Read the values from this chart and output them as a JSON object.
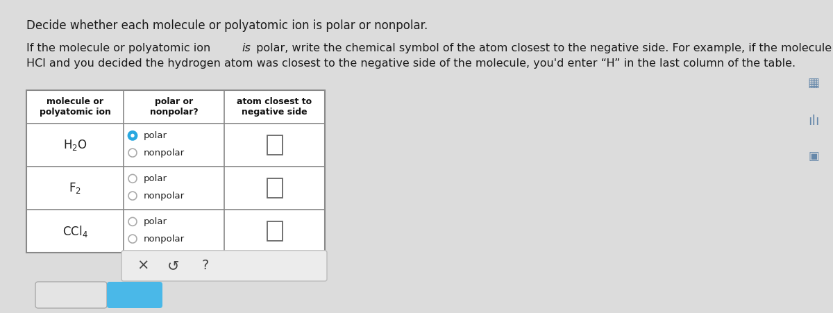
{
  "bg_color": "#dcdcdc",
  "title_line1": "Decide whether each molecule or polyatomic ion is polar or nonpolar.",
  "title_line2a": "If the molecule or polyatomic ion ",
  "title_line2a_italic": "is",
  "title_line2b": " polar, write the chemical symbol of the atom closest to the negative side. For example, if the molecule were",
  "title_line3": "HCl and you decided the hydrogen atom was closest to the negative side of the molecule, you'd enter “H” in the last column of the table.",
  "col_headers": [
    "molecule or\npolyatomic ion",
    "polar or\nnonpolar?",
    "atom closest to\nnegative side"
  ],
  "molecules": [
    "H$_2$O",
    "F$_2$",
    "CCl$_4$"
  ],
  "polar_selected": [
    true,
    false,
    false
  ],
  "table_bg": "#f5f5f5",
  "table_border": "#888888",
  "radio_selected_color": "#29a8e0",
  "radio_unselected_color": "#aaaaaa",
  "check_btn_color": "#4ab8e8",
  "explanation_btn_bg": "#e8e8e8",
  "explanation_btn_border": "#aaaaaa"
}
